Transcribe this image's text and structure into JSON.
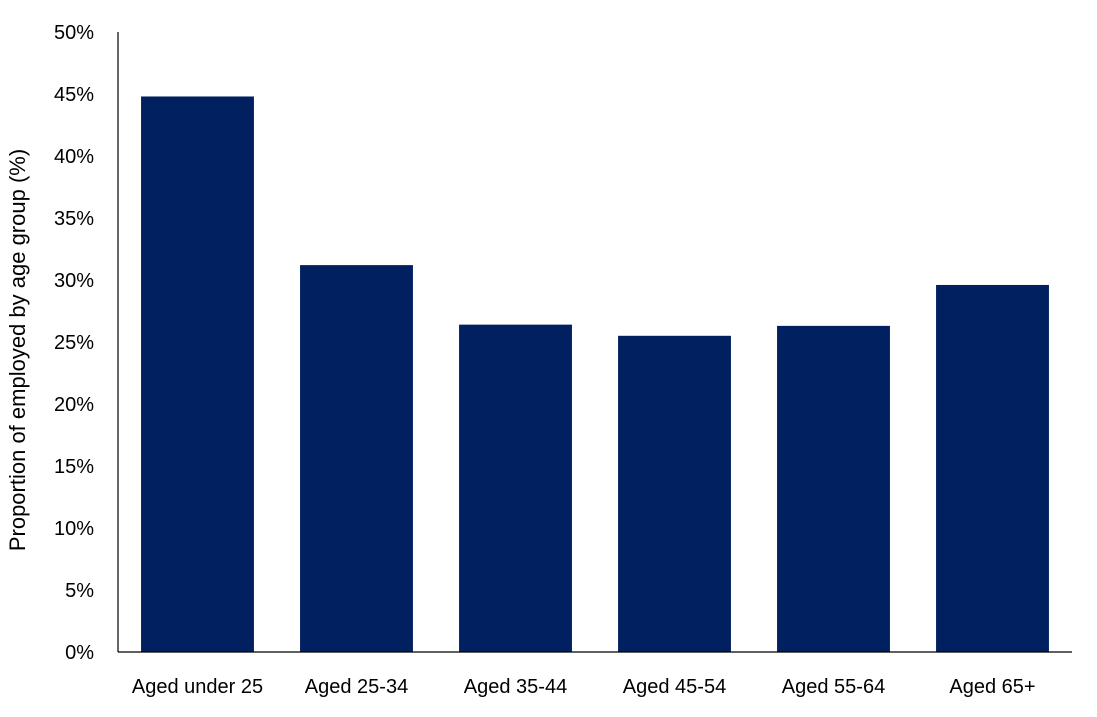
{
  "chart_data": {
    "type": "bar",
    "title": "",
    "xlabel": "",
    "ylabel": "Proportion of employed by age group (%)",
    "categories": [
      "Aged under 25",
      "Aged 25-34",
      "Aged 35-44",
      "Aged 45-54",
      "Aged 55-64",
      "Aged 65+"
    ],
    "values": [
      44.8,
      31.2,
      26.4,
      25.5,
      26.3,
      29.6
    ],
    "unit": "%",
    "ylim": [
      0,
      50
    ],
    "yticks": [
      0,
      5,
      10,
      15,
      20,
      25,
      30,
      35,
      40,
      45,
      50
    ],
    "ytick_labels": [
      "0%",
      "5%",
      "10%",
      "15%",
      "20%",
      "25%",
      "30%",
      "35%",
      "40%",
      "45%",
      "50%"
    ],
    "grid": false,
    "legend": "none",
    "bar_color": "#002060"
  }
}
